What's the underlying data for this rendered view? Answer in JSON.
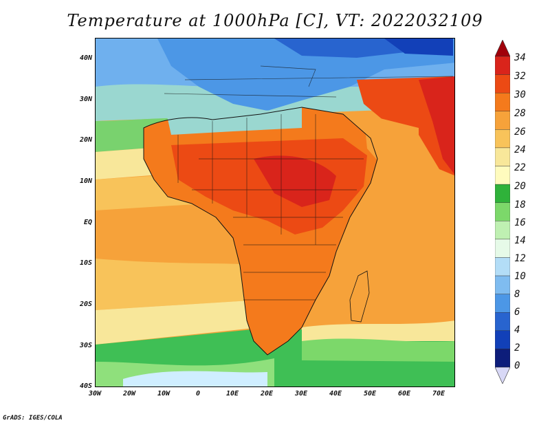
{
  "title": "Temperature at 1000hPa [C], VT: 2022032109",
  "footer": "GrADS: IGES/COLA",
  "map": {
    "extent": {
      "lon_min": -30,
      "lon_max": 75,
      "lat_min": -40,
      "lat_max": 45
    },
    "lat_labels": [
      {
        "lat": 40,
        "label": "40N"
      },
      {
        "lat": 30,
        "label": "30N"
      },
      {
        "lat": 20,
        "label": "20N"
      },
      {
        "lat": 10,
        "label": "10N"
      },
      {
        "lat": 0,
        "label": "EQ"
      },
      {
        "lat": -10,
        "label": "10S"
      },
      {
        "lat": -20,
        "label": "20S"
      },
      {
        "lat": -30,
        "label": "30S"
      },
      {
        "lat": -40,
        "label": "40S"
      }
    ],
    "lon_labels": [
      {
        "lon": -30,
        "label": "30W"
      },
      {
        "lon": -20,
        "label": "20W"
      },
      {
        "lon": -10,
        "label": "10W"
      },
      {
        "lon": 0,
        "label": "0"
      },
      {
        "lon": 10,
        "label": "10E"
      },
      {
        "lon": 20,
        "label": "20E"
      },
      {
        "lon": 30,
        "label": "30E"
      },
      {
        "lon": 40,
        "label": "40E"
      },
      {
        "lon": 50,
        "label": "50E"
      },
      {
        "lon": 60,
        "label": "60E"
      },
      {
        "lon": 70,
        "label": "70E"
      }
    ]
  },
  "colorbar": {
    "levels": [
      "34",
      "32",
      "30",
      "28",
      "26",
      "24",
      "22",
      "20",
      "18",
      "16",
      "14",
      "12",
      "10",
      "8",
      "6",
      "4",
      "2",
      "0"
    ],
    "colors": [
      "#a0000a",
      "#d9241b",
      "#ec4a14",
      "#f47a1c",
      "#f6a23a",
      "#f8c35a",
      "#f8e79a",
      "#fffbbe",
      "#2fb23a",
      "#7cd86a",
      "#bff0b2",
      "#e6fae8",
      "#b3ddf7",
      "#7fbcf0",
      "#4c97e6",
      "#2864cf",
      "#1240b8",
      "#0d1d7a",
      "#d8d8f6"
    ],
    "colors_note": "from top arrow to bottom arrow"
  }
}
